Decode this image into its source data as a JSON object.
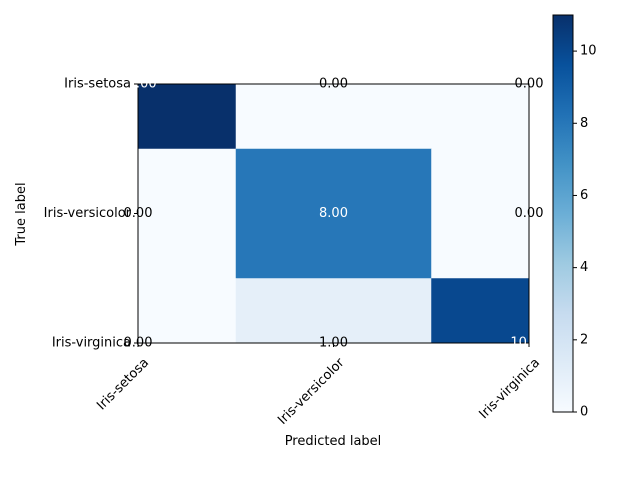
{
  "chart_data": {
    "type": "heatmap",
    "title": "",
    "xlabel": "Predicted label",
    "ylabel": "True label",
    "x_categories": [
      "Iris-setosa",
      "Iris-versicolor",
      "Iris-virginica"
    ],
    "y_categories": [
      "Iris-setosa",
      "Iris-versicolor",
      "Iris-virginica"
    ],
    "values": [
      [
        11,
        0,
        0
      ],
      [
        0,
        8,
        0
      ],
      [
        0,
        1,
        10
      ]
    ],
    "cell_labels": [
      [
        "11.00",
        "0.00",
        "0.00"
      ],
      [
        "0.00",
        "8.00",
        "0.00"
      ],
      [
        "0.00",
        "1.00",
        "10.00"
      ]
    ],
    "colormap": "Blues",
    "colorbar": {
      "range": [
        0,
        11
      ],
      "ticks": [
        0,
        2,
        4,
        6,
        8,
        10
      ]
    },
    "grid": false
  }
}
